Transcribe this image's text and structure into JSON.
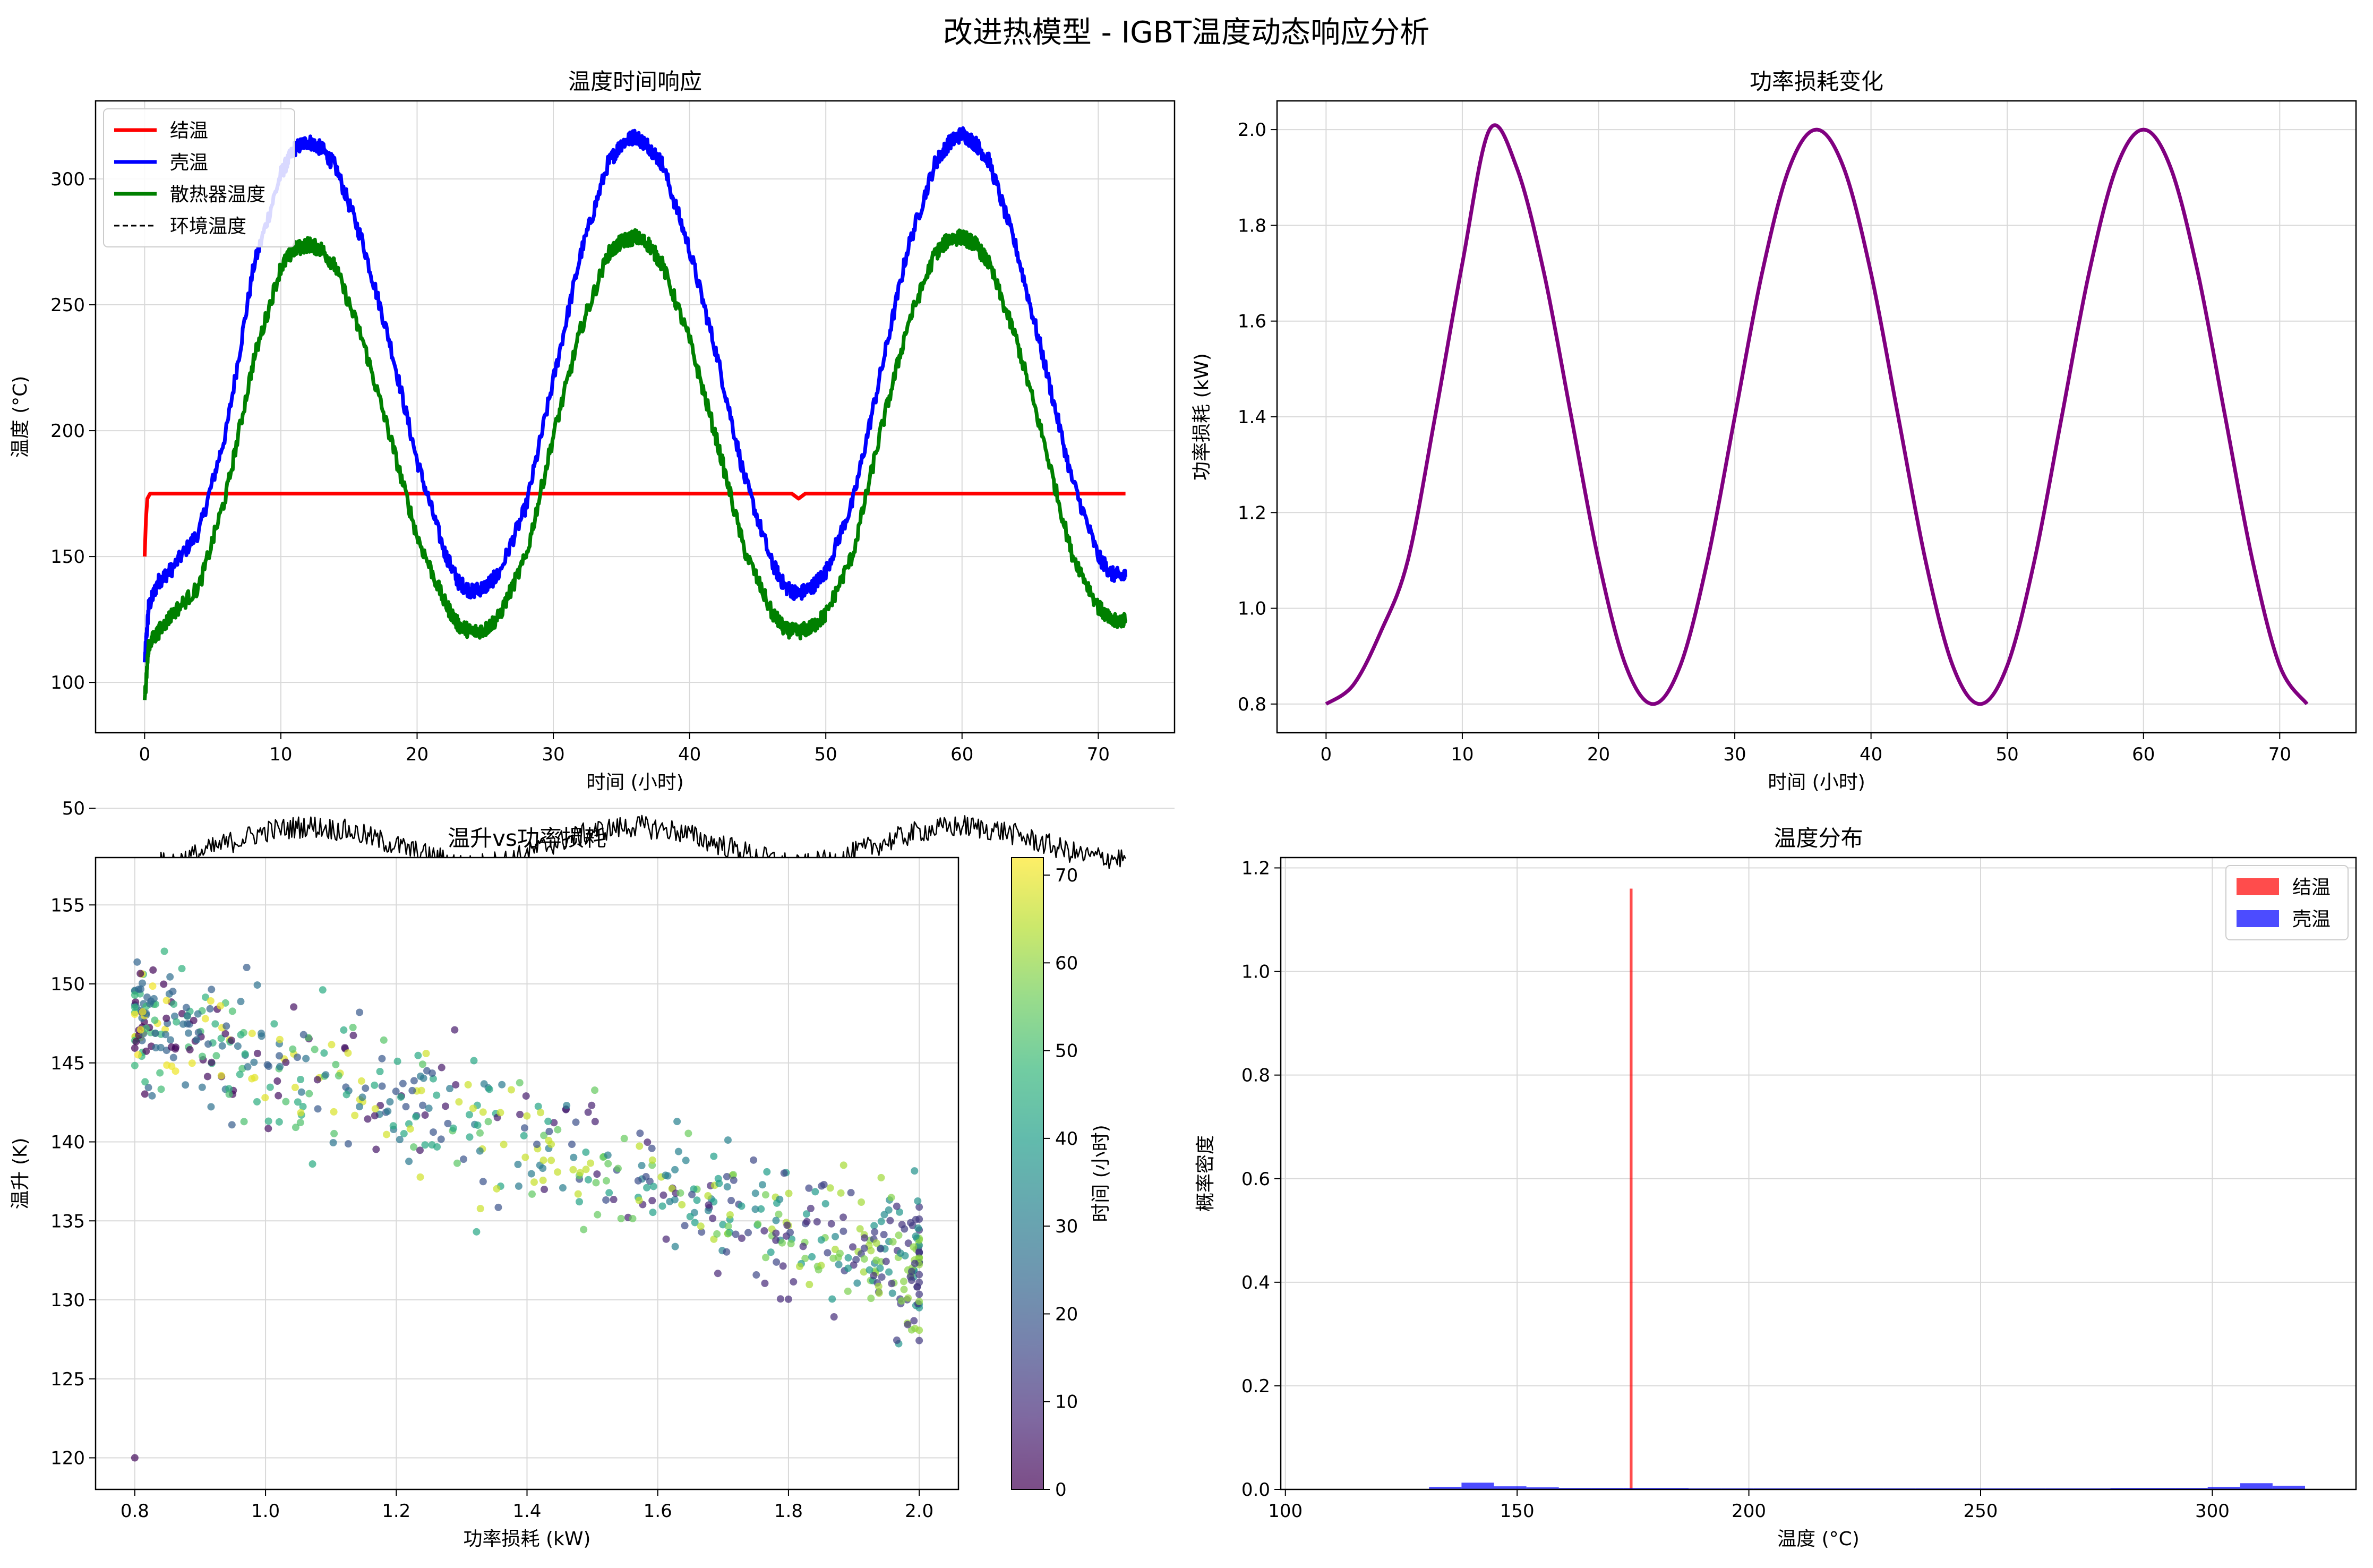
{
  "figure": {
    "suptitle": "改进热模型 - IGBT温度动态响应分析"
  },
  "chart_data": [
    {
      "id": "temp_time",
      "type": "line",
      "title": "温度时间响应",
      "xlabel": "时间 (小时)",
      "ylabel": "温度 (°C)",
      "xlim": [
        -3.6,
        75.6
      ],
      "ylim": [
        80,
        331
      ],
      "xticks": [
        0,
        10,
        20,
        30,
        40,
        50,
        60,
        70
      ],
      "yticks": [
        50,
        100,
        150,
        200,
        250,
        300
      ],
      "grid": true,
      "legend": "top-left",
      "series": [
        {
          "name": "结温",
          "color": "#ff0000",
          "style": "solid",
          "x": [
            0,
            0.1,
            0.2,
            0.4,
            1,
            10,
            20,
            30,
            40,
            47.5,
            48,
            48.5,
            60,
            72
          ],
          "y": [
            150,
            165,
            173,
            175,
            175,
            175,
            175,
            175,
            175,
            175,
            173,
            175,
            175,
            175
          ]
        },
        {
          "name": "壳温",
          "color": "#0000ff",
          "style": "solid",
          "x": [
            0,
            0.3,
            1,
            2,
            4,
            6,
            8,
            10,
            11,
            12,
            13,
            14,
            16,
            18,
            20,
            22,
            23,
            24,
            25,
            26,
            28,
            30,
            32,
            34,
            35,
            36,
            37,
            38,
            40,
            42,
            44,
            46,
            47,
            48,
            49,
            50,
            52,
            54,
            56,
            58,
            59,
            60,
            61,
            62,
            64,
            66,
            68,
            70,
            71,
            72
          ],
          "y": [
            108,
            130,
            140,
            145,
            160,
            200,
            265,
            302,
            312,
            315,
            312,
            305,
            275,
            235,
            188,
            152,
            140,
            136,
            138,
            143,
            170,
            220,
            270,
            306,
            314,
            317,
            313,
            306,
            272,
            230,
            182,
            148,
            138,
            135,
            138,
            144,
            172,
            222,
            272,
            306,
            314,
            318,
            314,
            307,
            272,
            228,
            182,
            150,
            143,
            142
          ]
        },
        {
          "name": "散热器温度",
          "color": "#008000",
          "style": "solid",
          "x": [
            0,
            0.3,
            1,
            2,
            4,
            6,
            8,
            10,
            11,
            12,
            13,
            14,
            16,
            18,
            20,
            22,
            23,
            24,
            25,
            26,
            28,
            30,
            32,
            34,
            35,
            36,
            37,
            38,
            40,
            42,
            44,
            46,
            47,
            48,
            49,
            50,
            52,
            54,
            56,
            58,
            59,
            60,
            61,
            62,
            64,
            66,
            68,
            70,
            71,
            72
          ],
          "y": [
            93,
            115,
            120,
            127,
            138,
            175,
            228,
            265,
            272,
            274,
            272,
            265,
            236,
            198,
            158,
            132,
            123,
            120,
            121,
            126,
            150,
            198,
            240,
            270,
            275,
            277,
            274,
            266,
            236,
            196,
            153,
            128,
            121,
            120,
            122,
            127,
            151,
            199,
            242,
            270,
            276,
            277,
            274,
            266,
            236,
            196,
            152,
            130,
            124,
            125
          ]
        },
        {
          "name": "环境温度",
          "color": "#000000",
          "style": "dashed",
          "x": [
            0,
            3,
            6,
            9,
            12,
            15,
            18,
            21,
            24,
            27,
            30,
            33,
            36,
            39,
            42,
            45,
            48,
            51,
            54,
            57,
            60,
            63,
            66,
            69,
            72
          ],
          "y": [
            27,
            30,
            36,
            41,
            43,
            41,
            36,
            31,
            27,
            30,
            36,
            41,
            43,
            41,
            36,
            31,
            27,
            30,
            36,
            41,
            43,
            41,
            36,
            31,
            30
          ]
        }
      ]
    },
    {
      "id": "power_loss",
      "type": "line",
      "title": "功率损耗变化",
      "xlabel": "时间 (小时)",
      "ylabel": "功率损耗 (kW)",
      "xlim": [
        -3.6,
        75.6
      ],
      "ylim": [
        0.74,
        2.06
      ],
      "xticks": [
        0,
        10,
        20,
        30,
        40,
        50,
        60,
        70
      ],
      "yticks": [
        0.8,
        1.0,
        1.2,
        1.4,
        1.6,
        1.8,
        2.0
      ],
      "grid": true,
      "series": [
        {
          "color": "#800080",
          "x": [
            0,
            2,
            4,
            6,
            8,
            10,
            12,
            14,
            16,
            18,
            20,
            22,
            24,
            26,
            28,
            30,
            32,
            34,
            36,
            38,
            40,
            42,
            44,
            46,
            48,
            50,
            52,
            54,
            56,
            58,
            60,
            62,
            64,
            66,
            68,
            70,
            72
          ],
          "y": [
            0.8,
            0.84,
            0.95,
            1.1,
            1.4,
            1.72,
            2.0,
            1.92,
            1.7,
            1.4,
            1.1,
            0.88,
            0.8,
            0.88,
            1.1,
            1.4,
            1.7,
            1.92,
            2.0,
            1.92,
            1.7,
            1.4,
            1.1,
            0.88,
            0.8,
            0.88,
            1.1,
            1.4,
            1.7,
            1.92,
            2.0,
            1.92,
            1.7,
            1.4,
            1.1,
            0.88,
            0.8
          ]
        }
      ]
    },
    {
      "id": "rise_vs_power",
      "type": "scatter",
      "title": "温升vs功率损耗",
      "xlabel": "功率损耗 (kW)",
      "ylabel": "温升 (K)",
      "xlim": [
        0.74,
        2.06
      ],
      "ylim": [
        118,
        158
      ],
      "xticks": [
        0.8,
        1.0,
        1.2,
        1.4,
        1.6,
        1.8,
        2.0
      ],
      "yticks": [
        120,
        125,
        130,
        135,
        140,
        145,
        150,
        155
      ],
      "grid": true,
      "colorbar": {
        "label": "时间 (小时)",
        "range": [
          0,
          72
        ],
        "ticks": [
          0,
          10,
          20,
          30,
          40,
          50,
          60,
          70
        ],
        "colormap": "viridis"
      },
      "trend": {
        "x_start": 0.8,
        "y_start": 148,
        "x_end": 2.0,
        "y_end": 132,
        "spread": 4
      },
      "outlier": {
        "x": 0.8,
        "y": 120
      },
      "point_count": 700
    },
    {
      "id": "temp_hist",
      "type": "bar",
      "title": "温度分布",
      "xlabel": "温度 (°C)",
      "ylabel": "概率密度",
      "xlim": [
        99,
        331
      ],
      "ylim": [
        0,
        1.22
      ],
      "xticks": [
        100,
        150,
        200,
        250,
        300
      ],
      "yticks": [
        0.0,
        0.2,
        0.4,
        0.6,
        0.8,
        1.0,
        1.2
      ],
      "grid": true,
      "legend": "top-right",
      "series": [
        {
          "name": "结温",
          "color": "#ff0000",
          "opacity": 0.7,
          "bins": [
            [
              174.3,
              174.9,
              1.16
            ]
          ]
        },
        {
          "name": "壳温",
          "color": "#0000ff",
          "opacity": 0.7,
          "bins": [
            [
              131.0,
              138.0,
              0.005
            ],
            [
              138.0,
              145.0,
              0.013
            ],
            [
              145.0,
              152.0,
              0.006
            ],
            [
              152.0,
              159.0,
              0.004
            ],
            [
              159.0,
              166.0,
              0.003
            ],
            [
              166.0,
              173.0,
              0.003
            ],
            [
              173.0,
              180.0,
              0.003
            ],
            [
              180.0,
              187.0,
              0.003
            ],
            [
              187.0,
              194.0,
              0.002
            ],
            [
              194.0,
              201.0,
              0.002
            ],
            [
              201.0,
              208.0,
              0.002
            ],
            [
              208.0,
              215.0,
              0.002
            ],
            [
              215.0,
              222.0,
              0.002
            ],
            [
              222.0,
              229.0,
              0.002
            ],
            [
              229.0,
              236.0,
              0.002
            ],
            [
              236.0,
              243.0,
              0.002
            ],
            [
              243.0,
              250.0,
              0.002
            ],
            [
              250.0,
              257.0,
              0.002
            ],
            [
              257.0,
              264.0,
              0.002
            ],
            [
              264.0,
              271.0,
              0.002
            ],
            [
              271.0,
              278.0,
              0.002
            ],
            [
              278.0,
              285.0,
              0.003
            ],
            [
              285.0,
              292.0,
              0.003
            ],
            [
              292.0,
              299.0,
              0.003
            ],
            [
              299.0,
              306.0,
              0.005
            ],
            [
              306.0,
              313.0,
              0.012
            ],
            [
              313.0,
              320.0,
              0.007
            ]
          ]
        }
      ]
    }
  ]
}
